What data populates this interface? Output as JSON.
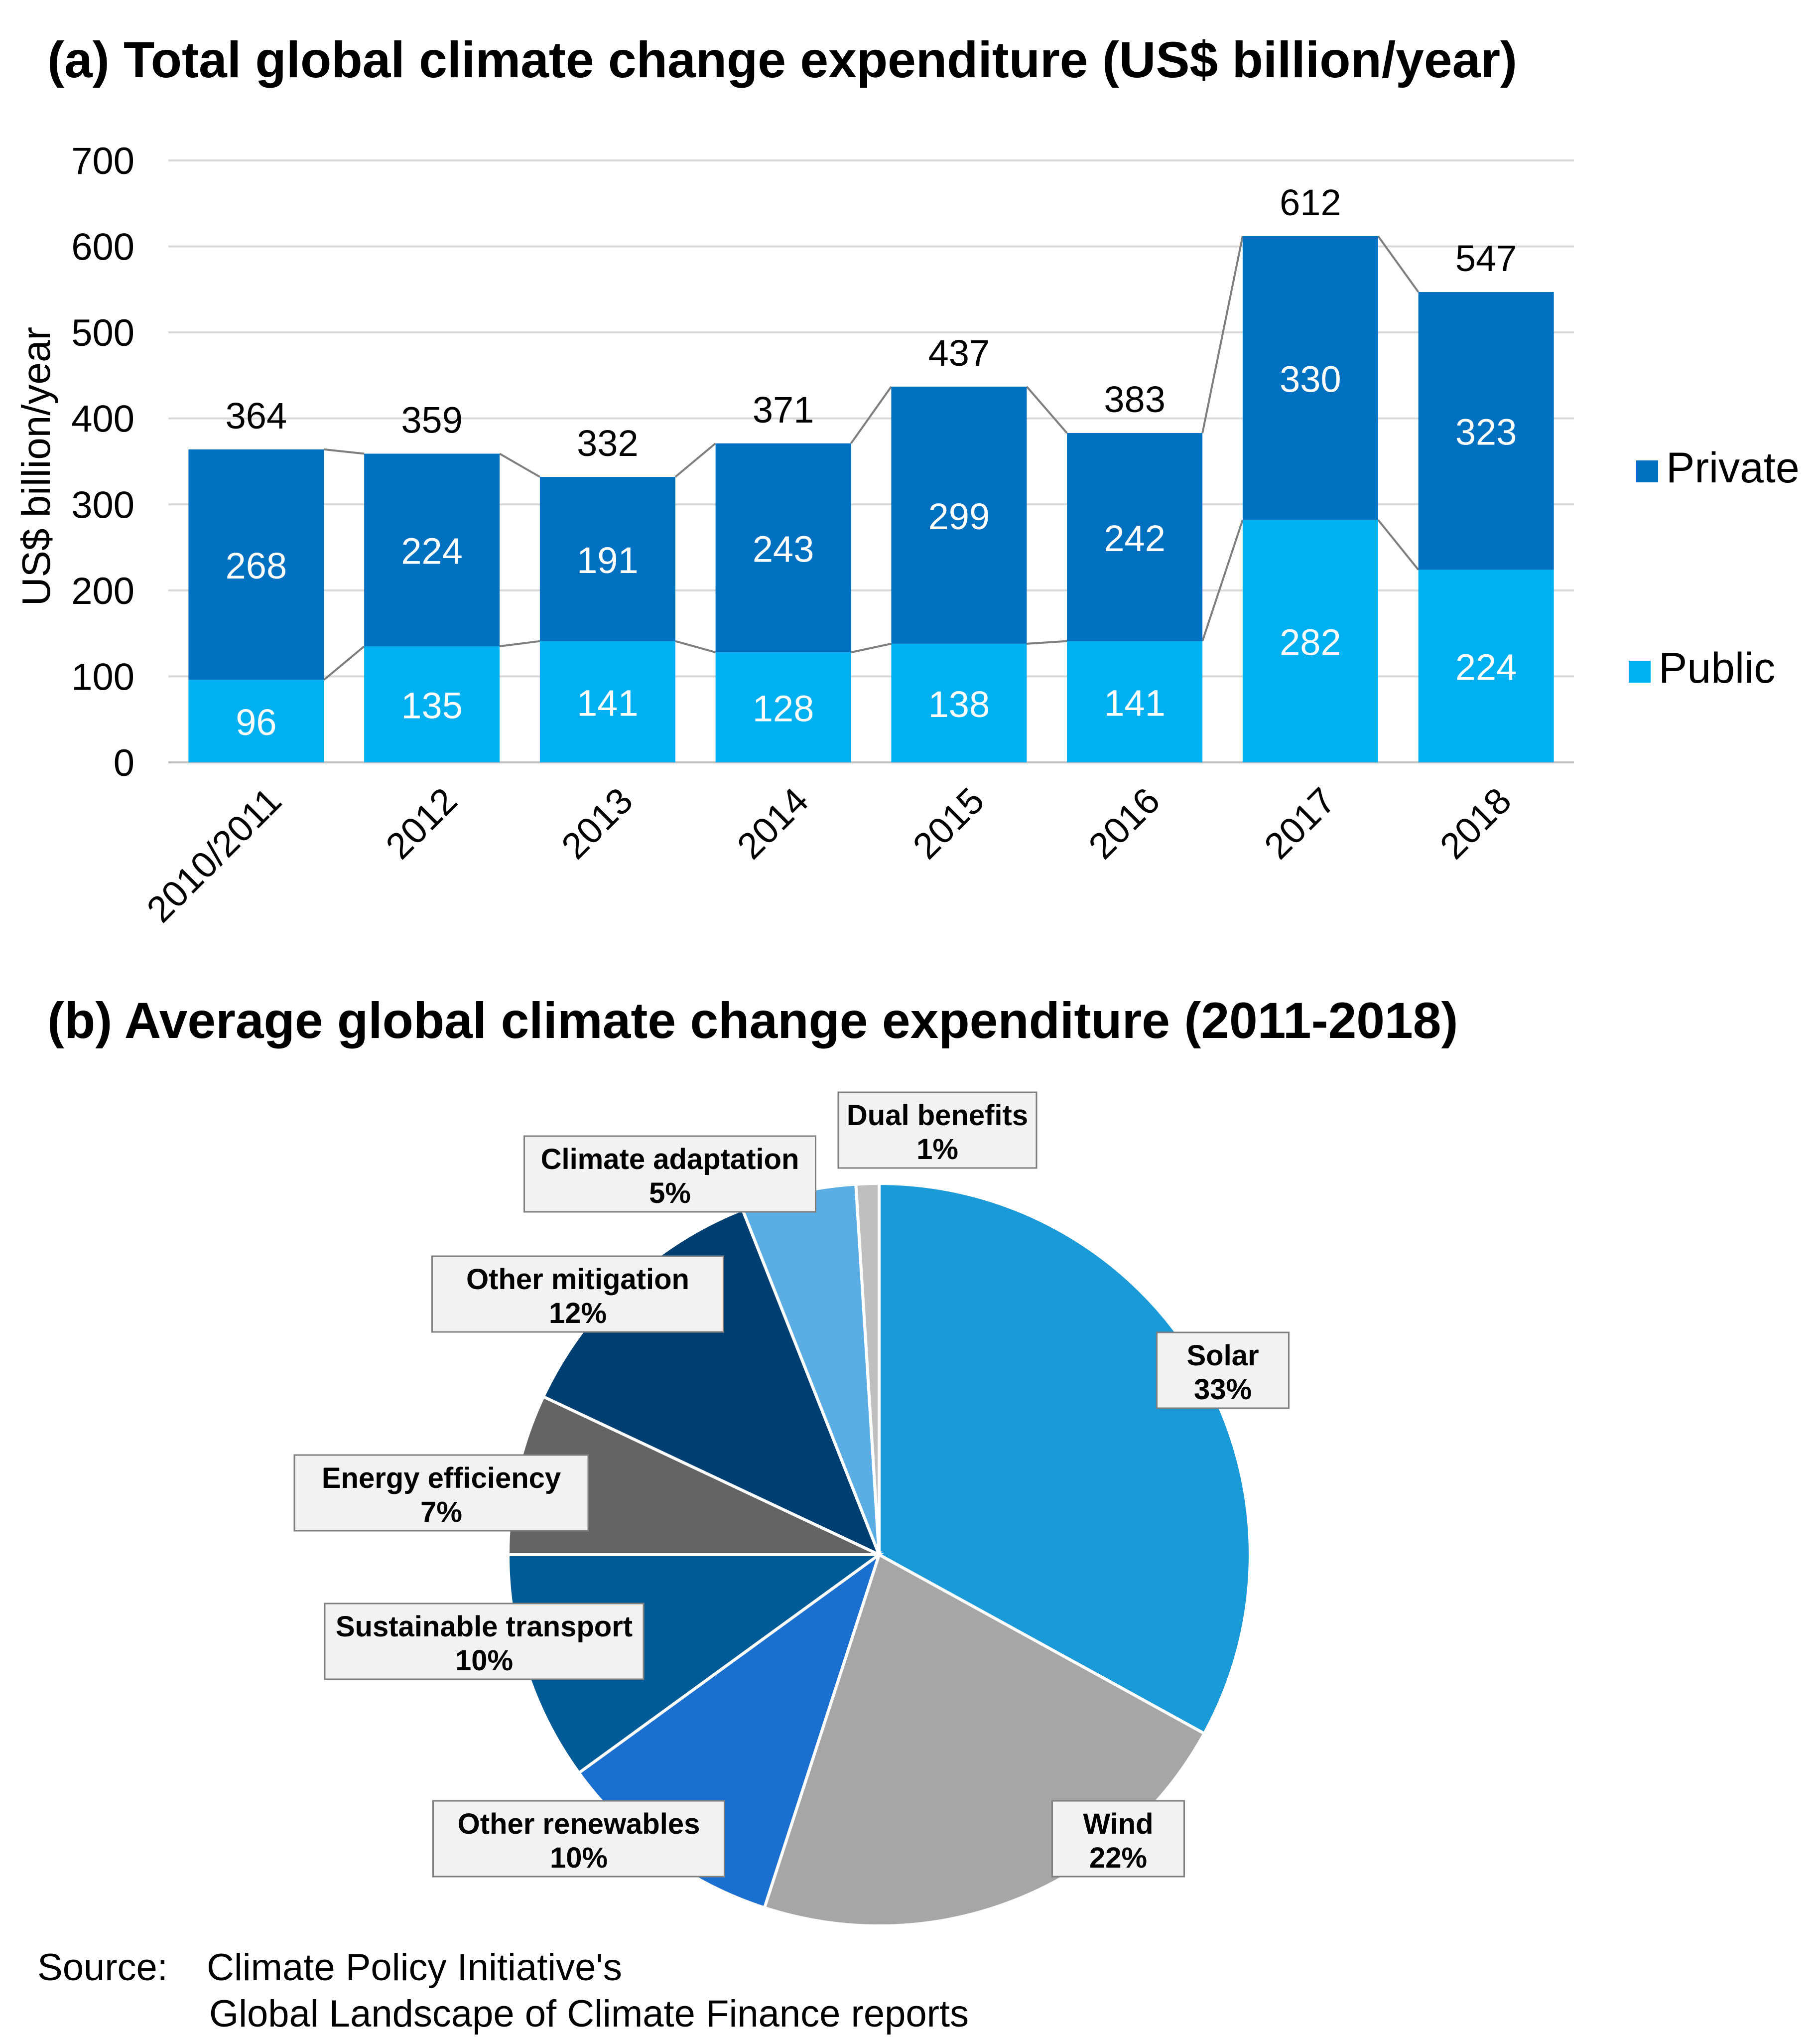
{
  "chart_data": [
    {
      "type": "bar",
      "stacked": true,
      "title": "(a) Total global climate change expenditure (US$ billion/year)",
      "ylabel": "US$ billion/year",
      "ylim": [
        0,
        700
      ],
      "yticks": [
        "0",
        "100",
        "200",
        "300",
        "400",
        "500",
        "600",
        "700"
      ],
      "categories": [
        "2010/2011",
        "2012",
        "2013",
        "2014",
        "2015",
        "2016",
        "2017",
        "2018"
      ],
      "series": [
        {
          "name": "Public",
          "color": "#00b0f0",
          "values": [
            96,
            135,
            141,
            128,
            138,
            141,
            282,
            224
          ]
        },
        {
          "name": "Private",
          "color": "#0070c0",
          "values": [
            268,
            224,
            191,
            243,
            299,
            242,
            330,
            323
          ]
        }
      ],
      "totals": [
        364,
        359,
        332,
        371,
        437,
        383,
        612,
        547
      ],
      "grid": true,
      "legend": "right"
    },
    {
      "type": "pie",
      "title": "(b) Average global climate change expenditure (2011-2018)",
      "slices": [
        {
          "label": "Solar",
          "value": 33,
          "display": "33%",
          "color": "#1a9ad7"
        },
        {
          "label": "Wind",
          "value": 22,
          "display": "22%",
          "color": "#a6a6a6"
        },
        {
          "label": "Other renewables",
          "value": 10,
          "display": "10%",
          "color": "#1b6fcf"
        },
        {
          "label": "Sustainable transport",
          "value": 10,
          "display": "10%",
          "color": "#005b96"
        },
        {
          "label": "Energy efficiency",
          "value": 7,
          "display": "7%",
          "color": "#646464"
        },
        {
          "label": "Other mitigation",
          "value": 12,
          "display": "12%",
          "color": "#003f72"
        },
        {
          "label": "Climate adaptation",
          "value": 5,
          "display": "5%",
          "color": "#5aaee3"
        },
        {
          "label": "Dual benefits",
          "value": 1,
          "display": "1%",
          "color": "#bfbfbf"
        }
      ]
    }
  ],
  "source": {
    "label": "Source:",
    "line1": "Climate Policy Initiative's",
    "line2": "Global Landscape of Climate Finance reports"
  }
}
